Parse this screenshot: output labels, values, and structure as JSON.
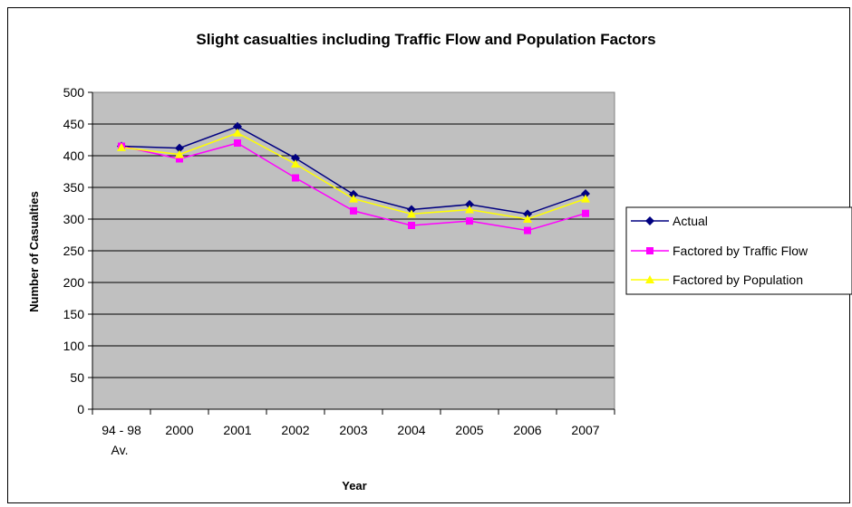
{
  "chart_data": {
    "type": "line",
    "title": "Slight casualties including Traffic Flow and Population Factors",
    "xlabel": "Year",
    "ylabel": "Number of Casualties",
    "categories": [
      [
        "94 - 98",
        "Av."
      ],
      [
        "2000"
      ],
      [
        "2001"
      ],
      [
        "2002"
      ],
      [
        "2003"
      ],
      [
        "2004"
      ],
      [
        "2005"
      ],
      [
        "2006"
      ],
      [
        "2007"
      ]
    ],
    "ylim": [
      0,
      500
    ],
    "yticks": [
      0,
      50,
      100,
      150,
      200,
      250,
      300,
      350,
      400,
      450,
      500
    ],
    "grid": true,
    "legend_position": "right",
    "plot_background": "#c0c0c0",
    "series": [
      {
        "name": "Actual",
        "color": "#000080",
        "marker": "diamond",
        "values": [
          415,
          412,
          446,
          396,
          339,
          315,
          323,
          308,
          340
        ]
      },
      {
        "name": "Factored by Traffic Flow",
        "color": "#ff00ff",
        "marker": "square",
        "values": [
          415,
          395,
          420,
          365,
          313,
          290,
          297,
          282,
          309
        ]
      },
      {
        "name": "Factored by Population",
        "color": "#ffff00",
        "marker": "triangle",
        "values": [
          413,
          402,
          436,
          387,
          332,
          308,
          315,
          300,
          332
        ]
      }
    ]
  }
}
